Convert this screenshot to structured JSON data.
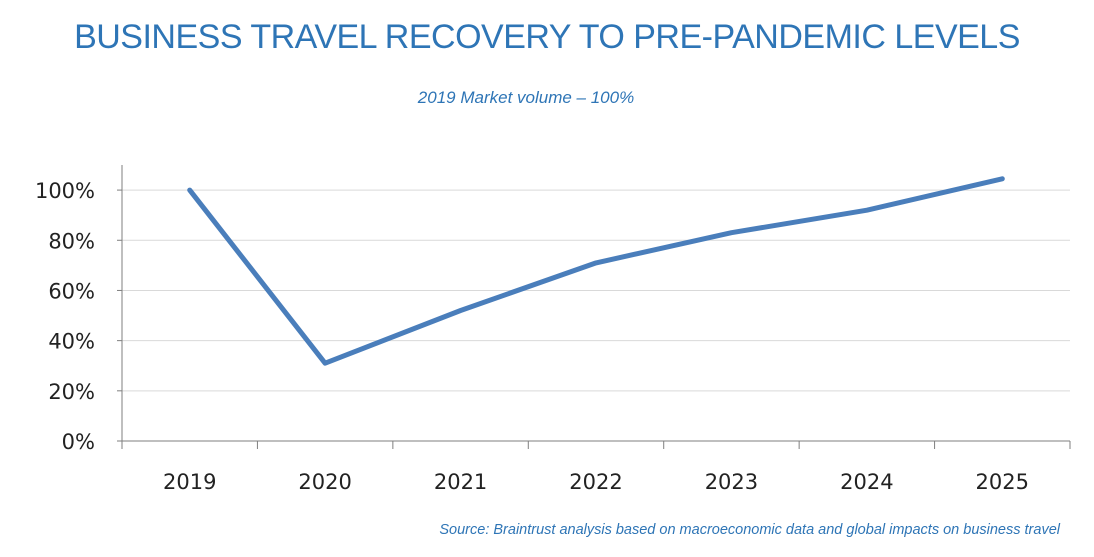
{
  "header": {
    "title": "BUSINESS TRAVEL RECOVERY TO PRE-PANDEMIC LEVELS",
    "subtitle": "2019 Market volume – 100%"
  },
  "footer": {
    "source": "Source: Braintrust analysis based on macroeconomic data and global impacts on business travel"
  },
  "chart_data": {
    "type": "line",
    "title": "BUSINESS TRAVEL RECOVERY TO PRE-PANDEMIC LEVELS",
    "subtitle": "2019 Market volume – 100%",
    "categories": [
      "2019",
      "2020",
      "2021",
      "2022",
      "2023",
      "2024",
      "2025"
    ],
    "series": [
      {
        "values": [
          100,
          31,
          52,
          71,
          83,
          92,
          104.5
        ],
        "color": "#4a7ebb"
      }
    ],
    "ylim": [
      0,
      110
    ],
    "yticks": [
      0,
      20,
      40,
      60,
      80,
      100
    ],
    "ytick_labels": [
      "0%",
      "20%",
      "40%",
      "60%",
      "80%",
      "100%"
    ],
    "grid": true,
    "xlabel": "",
    "ylabel": ""
  }
}
